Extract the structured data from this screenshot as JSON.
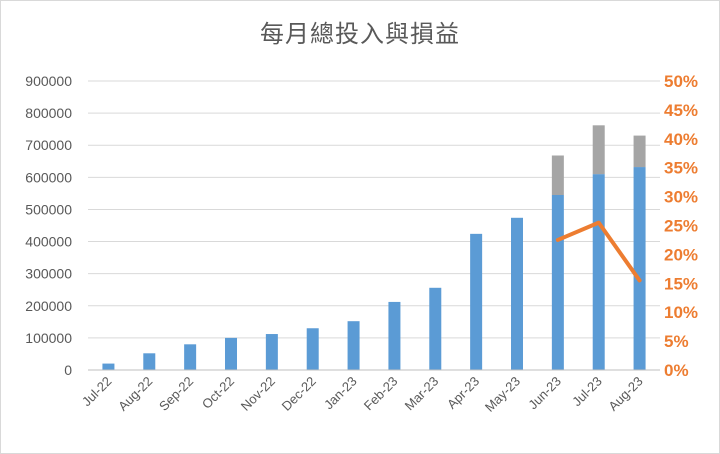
{
  "chart_data": {
    "type": "bar",
    "title": "每月總投入與損益",
    "categories": [
      "Jul-22",
      "Aug-22",
      "Sep-22",
      "Oct-22",
      "Nov-22",
      "Dec-22",
      "Jan-23",
      "Feb-23",
      "Mar-23",
      "Apr-23",
      "May-23",
      "Jun-23",
      "Jul-23",
      "Aug-23"
    ],
    "series": [
      {
        "type": "stacked-bar",
        "color": "#5b9bd5",
        "values": [
          20000,
          52000,
          80000,
          100000,
          112000,
          130000,
          152000,
          212000,
          256000,
          424000,
          474000,
          545000,
          610000,
          632000
        ]
      },
      {
        "type": "stacked-bar",
        "color": "#a5a5a5",
        "values": [
          null,
          null,
          null,
          null,
          null,
          null,
          null,
          null,
          null,
          null,
          null,
          123000,
          152000,
          98000
        ]
      },
      {
        "type": "line",
        "axis": "right",
        "color": "#ed7d31",
        "values": [
          null,
          null,
          null,
          null,
          null,
          null,
          null,
          null,
          null,
          null,
          null,
          0.225,
          0.255,
          0.155
        ]
      }
    ],
    "ylim": [
      0,
      900000
    ],
    "y_ticks": [
      "0",
      "100000",
      "200000",
      "300000",
      "400000",
      "500000",
      "600000",
      "700000",
      "800000",
      "900000"
    ],
    "y2lim": [
      0,
      0.5
    ],
    "y2_ticks": [
      "0%",
      "5%",
      "10%",
      "15%",
      "20%",
      "25%",
      "30%",
      "35%",
      "40%",
      "45%",
      "50%"
    ],
    "y2_color": "#ed7d31",
    "grid": true,
    "legend": "none"
  }
}
